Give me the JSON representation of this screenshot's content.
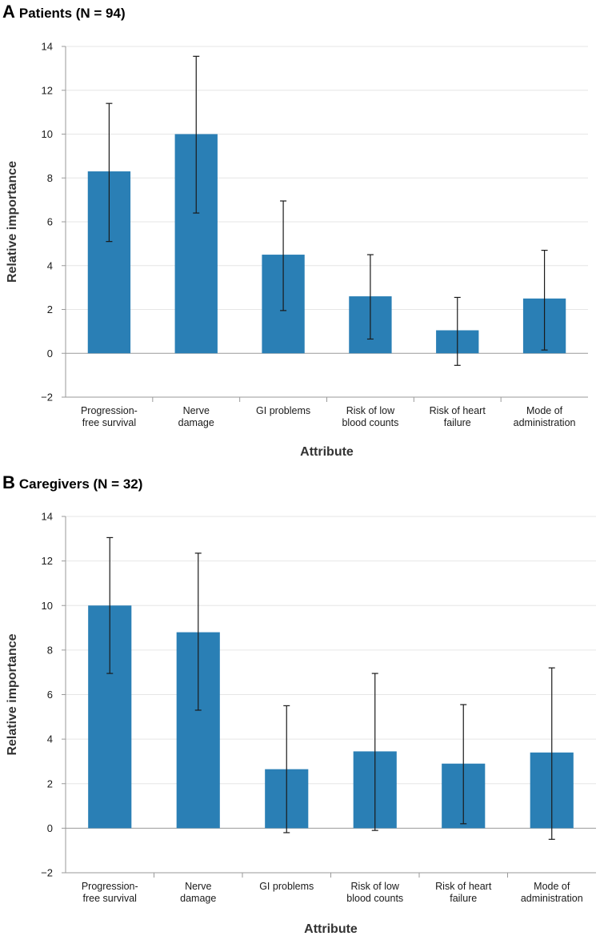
{
  "colors": {
    "bar": "#2a7fb5",
    "grid": "#e6e6e6",
    "axis": "#9a9a9a",
    "error": "#1a1a1a"
  },
  "chart_data": [
    {
      "type": "bar",
      "panel_letter": "A",
      "title": "Patients (N = 94)",
      "xlabel": "Attribute",
      "ylabel": "Relative importance",
      "ylim": [
        -2,
        14
      ],
      "yticks": [
        "−2",
        "0",
        "2",
        "4",
        "6",
        "8",
        "10",
        "12",
        "14"
      ],
      "ytick_values": [
        -2,
        0,
        2,
        4,
        6,
        8,
        10,
        12,
        14
      ],
      "grid": true,
      "categories": [
        [
          "Progression-",
          "free survival"
        ],
        [
          "Nerve",
          "damage"
        ],
        [
          "GI problems"
        ],
        [
          "Risk of low",
          "blood counts"
        ],
        [
          "Risk of heart",
          "failure"
        ],
        [
          "Mode of",
          "administration"
        ]
      ],
      "values": [
        8.3,
        10.0,
        4.5,
        2.6,
        1.05,
        2.5
      ],
      "error_low": [
        5.1,
        6.4,
        1.95,
        0.65,
        -0.55,
        0.15
      ],
      "error_high": [
        11.4,
        13.55,
        6.95,
        4.5,
        2.55,
        4.7
      ]
    },
    {
      "type": "bar",
      "panel_letter": "B",
      "title": "Caregivers (N = 32)",
      "xlabel": "Attribute",
      "ylabel": "Relative importance",
      "ylim": [
        -2,
        14
      ],
      "yticks": [
        "−2",
        "0",
        "2",
        "4",
        "6",
        "8",
        "10",
        "12",
        "14"
      ],
      "ytick_values": [
        -2,
        0,
        2,
        4,
        6,
        8,
        10,
        12,
        14
      ],
      "grid": true,
      "categories": [
        [
          "Progression-",
          "free survival"
        ],
        [
          "Nerve",
          "damage"
        ],
        [
          "GI problems"
        ],
        [
          "Risk of low",
          "blood counts"
        ],
        [
          "Risk of heart",
          "failure"
        ],
        [
          "Mode of",
          "administration"
        ]
      ],
      "values": [
        10.0,
        8.8,
        2.65,
        3.45,
        2.9,
        3.4
      ],
      "error_low": [
        6.95,
        5.3,
        -0.2,
        -0.1,
        0.2,
        -0.5
      ],
      "error_high": [
        13.05,
        12.35,
        5.5,
        6.95,
        5.55,
        7.2
      ]
    }
  ]
}
